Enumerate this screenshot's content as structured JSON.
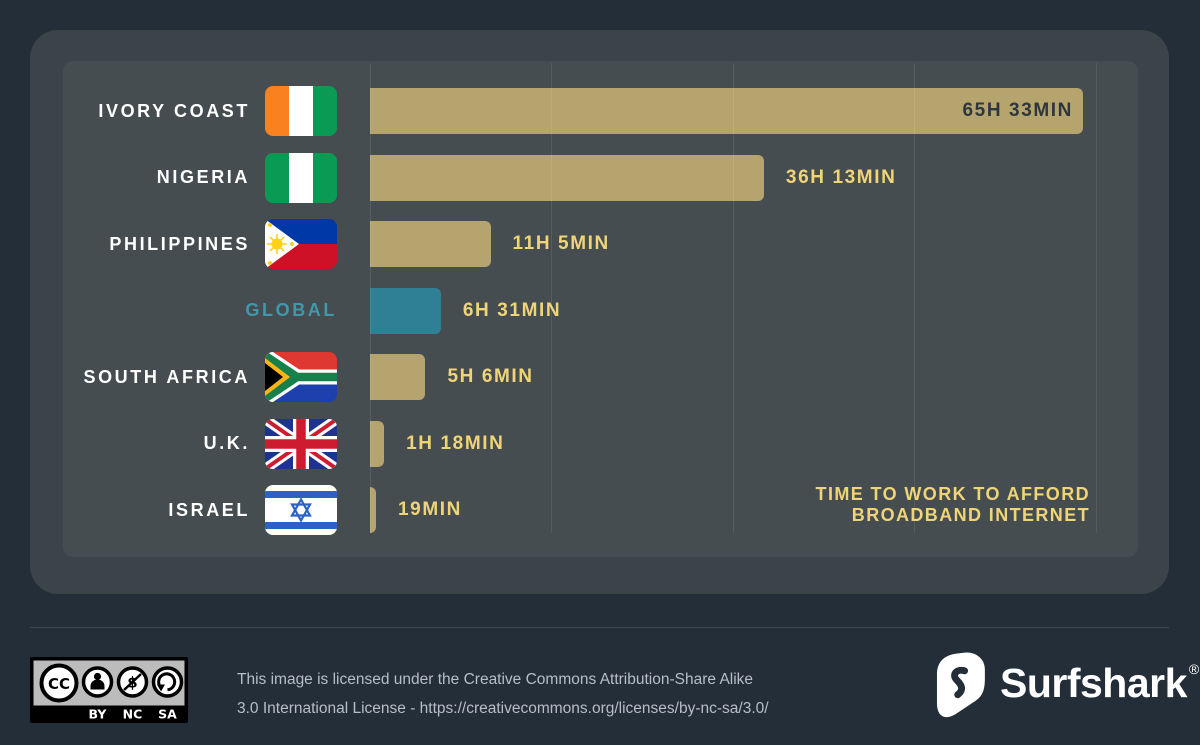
{
  "chart_data": {
    "type": "bar",
    "orientation": "horizontal",
    "title": "TIME TO WORK TO AFFORD BROADBAND INTERNET",
    "title_lines": [
      "TIME TO WORK TO AFFORD",
      "BROADBAND INTERNET"
    ],
    "unit": "minutes",
    "xlim": [
      0,
      3933
    ],
    "grid": true,
    "rows": [
      {
        "label": "IVORY COAST",
        "flag": "ivory-coast",
        "minutes": 3933,
        "value_label": "65H 33MIN",
        "value_position": "inside",
        "highlight": false
      },
      {
        "label": "NIGERIA",
        "flag": "nigeria",
        "minutes": 2173,
        "value_label": "36H 13MIN",
        "value_position": "outside",
        "highlight": false
      },
      {
        "label": "PHILIPPINES",
        "flag": "philippines",
        "minutes": 665,
        "value_label": "11H 5MIN",
        "value_position": "outside",
        "highlight": false
      },
      {
        "label": "GLOBAL",
        "flag": null,
        "minutes": 391,
        "value_label": "6H 31MIN",
        "value_position": "outside",
        "highlight": true
      },
      {
        "label": "SOUTH AFRICA",
        "flag": "south-africa",
        "minutes": 306,
        "value_label": "5H 6MIN",
        "value_position": "outside",
        "highlight": false
      },
      {
        "label": "U.K.",
        "flag": "uk",
        "minutes": 78,
        "value_label": "1H 18MIN",
        "value_position": "outside",
        "highlight": false
      },
      {
        "label": "ISRAEL",
        "flag": "israel",
        "minutes": 19,
        "value_label": "19MIN",
        "value_position": "outside",
        "highlight": false
      }
    ]
  },
  "colors": {
    "page_bg": "#242e39",
    "card_bg": "#3b4449",
    "panel_bg": "#454d50",
    "bar_gold": "#b5a46d",
    "bar_teal": "#2f7f95",
    "value_gold": "#f0d478",
    "value_dark": "#2f373d",
    "label_white": "#ffffff",
    "global_teal": "#4197ab",
    "footer_text": "#b6bec6",
    "gridline": "rgba(255,255,255,0.09)"
  },
  "footer": {
    "license_line1": "This image is licensed under the Creative Commons Attribution-Share Alike",
    "license_line2": "3.0 International License - https://creativecommons.org/licenses/by-nc-sa/3.0/",
    "cc_circle_label": "CC",
    "cc_badge_labels": [
      "BY",
      "NC",
      "SA"
    ],
    "brand_name": "Surfshark",
    "registered_mark": "®"
  }
}
